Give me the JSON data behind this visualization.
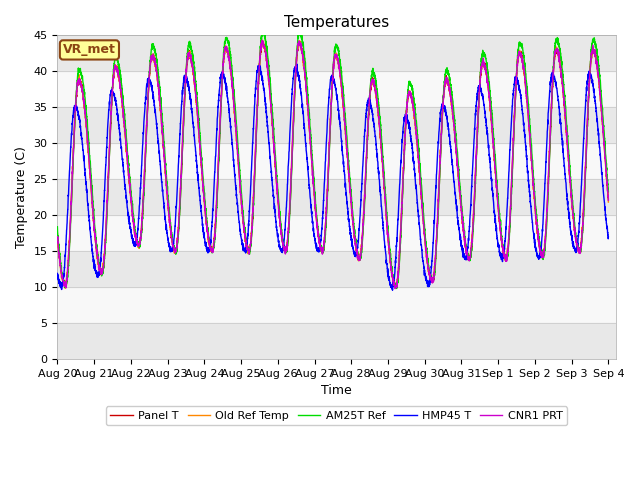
{
  "title": "Temperatures",
  "ylabel": "Temperature (C)",
  "xlabel": "Time",
  "ylim": [
    0,
    45
  ],
  "annotation_text": "VR_met",
  "annotation_bg": "#ffff99",
  "annotation_border": "#8b4513",
  "xtick_labels": [
    "Aug 20",
    "Aug 21",
    "Aug 22",
    "Aug 23",
    "Aug 24",
    "Aug 25",
    "Aug 26",
    "Aug 27",
    "Aug 28",
    "Aug 29",
    "Aug 30",
    "Aug 31",
    "Sep 1",
    "Sep 2",
    "Sep 3",
    "Sep 4"
  ],
  "legend": [
    "Panel T",
    "Old Ref Temp",
    "AM25T Ref",
    "HMP45 T",
    "CNR1 PRT"
  ],
  "colors": [
    "#cc0000",
    "#ff8800",
    "#00dd00",
    "#0000ff",
    "#cc00cc"
  ],
  "linewidth": 1.0,
  "num_days": 15,
  "points_per_day": 288,
  "bg_color": "#e8e8e8",
  "bg_white": "#f8f8f8",
  "title_fontsize": 11,
  "label_fontsize": 9,
  "tick_fontsize": 8,
  "figwidth": 6.4,
  "figheight": 4.8
}
